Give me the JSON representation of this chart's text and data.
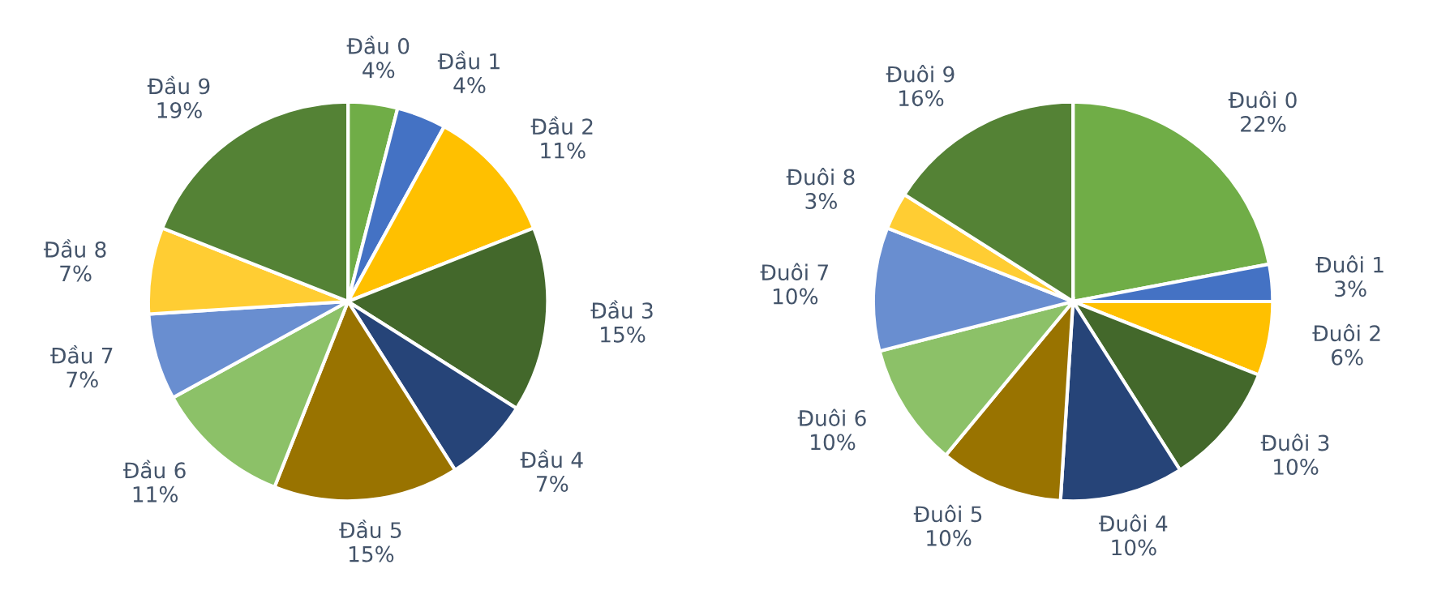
{
  "chart_data": [
    {
      "type": "pie",
      "categories": [
        "Đầu 0",
        "Đầu 1",
        "Đầu 2",
        "Đầu 3",
        "Đầu 4",
        "Đầu 5",
        "Đầu 6",
        "Đầu 7",
        "Đầu 8",
        "Đầu 9"
      ],
      "values": [
        4,
        4,
        11,
        15,
        7,
        15,
        11,
        7,
        7,
        19
      ],
      "value_labels": [
        "4%",
        "4%",
        "11%",
        "15%",
        "7%",
        "15%",
        "11%",
        "7%",
        "7%",
        "19%"
      ],
      "colors": [
        "#70ad47",
        "#4472c4",
        "#ffc000",
        "#43682b",
        "#264478",
        "#997300",
        "#8cc168",
        "#698ed0",
        "#ffcd33",
        "#548235"
      ]
    },
    {
      "type": "pie",
      "categories": [
        "Đuôi 0",
        "Đuôi 1",
        "Đuôi 2",
        "Đuôi 3",
        "Đuôi 4",
        "Đuôi 5",
        "Đuôi 6",
        "Đuôi 7",
        "Đuôi 8",
        "Đuôi 9"
      ],
      "values": [
        22,
        3,
        6,
        10,
        10,
        10,
        10,
        10,
        3,
        16
      ],
      "value_labels": [
        "22%",
        "3%",
        "6%",
        "10%",
        "10%",
        "10%",
        "10%",
        "10%",
        "3%",
        "16%"
      ],
      "colors": [
        "#70ad47",
        "#4472c4",
        "#ffc000",
        "#43682b",
        "#264478",
        "#997300",
        "#8cc168",
        "#698ed0",
        "#ffcd33",
        "#548235"
      ]
    }
  ]
}
